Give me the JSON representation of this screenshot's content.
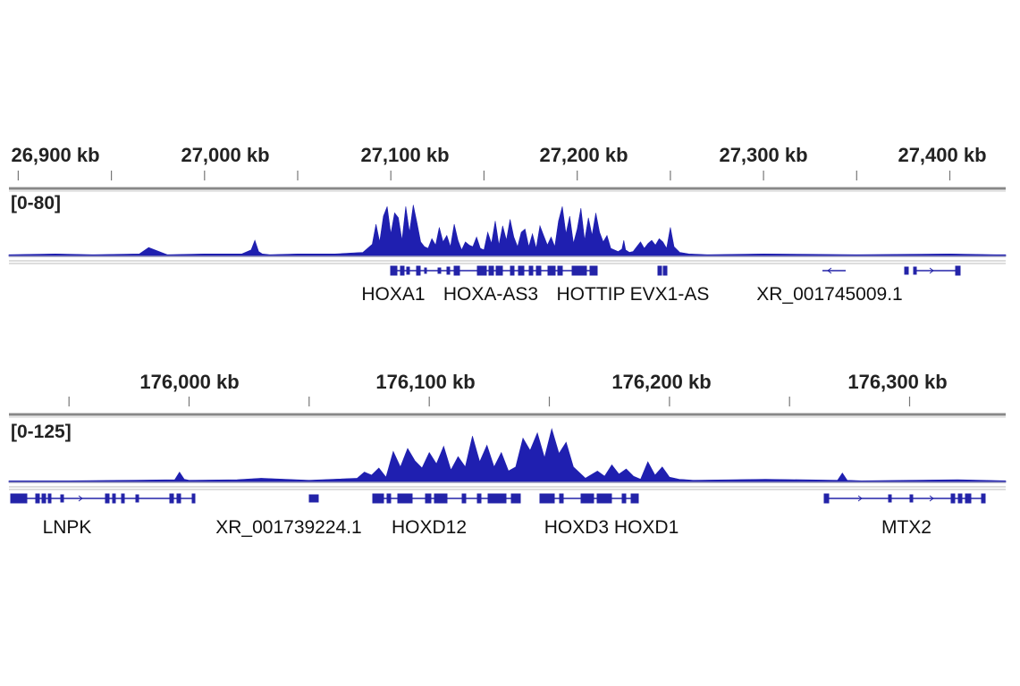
{
  "colors": {
    "signal": "#1f1fb0",
    "gene": "#2323a8",
    "axis": "#888888",
    "text": "#222222"
  },
  "chart_data": [
    {
      "type": "area",
      "range_label": "[0-80]",
      "ylim": [
        0,
        80
      ],
      "x_unit": "kb",
      "xlim": [
        26895,
        27430
      ],
      "ticks": [
        26900,
        27000,
        27100,
        27200,
        27300,
        27400
      ],
      "tick_labels": [
        "26,900 kb",
        "27,000 kb",
        "27,100 kb",
        "27,200 kb",
        "27,300 kb",
        "27,400 kb"
      ],
      "minor_ticks": [
        26950,
        27050,
        27150,
        27250,
        27350
      ],
      "x": [
        26895,
        26920,
        26940,
        26965,
        26970,
        26980,
        27000,
        27020,
        27025,
        27027,
        27029,
        27031,
        27035,
        27050,
        27070,
        27085,
        27090,
        27092,
        27094,
        27096,
        27098,
        27100,
        27102,
        27104,
        27106,
        27108,
        27110,
        27112,
        27114,
        27116,
        27118,
        27120,
        27122,
        27124,
        27126,
        27128,
        27130,
        27132,
        27134,
        27136,
        27138,
        27140,
        27142,
        27144,
        27146,
        27148,
        27150,
        27152,
        27154,
        27156,
        27158,
        27160,
        27162,
        27164,
        27166,
        27168,
        27170,
        27172,
        27174,
        27176,
        27178,
        27180,
        27182,
        27184,
        27186,
        27188,
        27190,
        27192,
        27194,
        27196,
        27198,
        27200,
        27202,
        27204,
        27206,
        27208,
        27210,
        27212,
        27214,
        27216,
        27218,
        27222,
        27224,
        27225,
        27226,
        27228,
        27230,
        27232,
        27234,
        27236,
        27238,
        27240,
        27242,
        27244,
        27246,
        27248,
        27250,
        27252,
        27255,
        27260,
        27270,
        27300,
        27350,
        27400,
        27425,
        27430
      ],
      "y": [
        2,
        3,
        2,
        3,
        11,
        2,
        3,
        3,
        8,
        20,
        6,
        3,
        2,
        3,
        3,
        5,
        15,
        40,
        18,
        50,
        62,
        28,
        54,
        48,
        20,
        62,
        30,
        64,
        42,
        18,
        12,
        10,
        22,
        14,
        36,
        18,
        26,
        12,
        40,
        20,
        8,
        18,
        14,
        12,
        24,
        10,
        8,
        30,
        16,
        44,
        14,
        38,
        20,
        46,
        24,
        12,
        30,
        34,
        12,
        28,
        10,
        38,
        26,
        14,
        24,
        12,
        44,
        62,
        28,
        50,
        16,
        34,
        60,
        20,
        48,
        26,
        54,
        30,
        18,
        26,
        10,
        6,
        9,
        20,
        8,
        5,
        6,
        12,
        18,
        10,
        16,
        20,
        14,
        22,
        18,
        10,
        36,
        12,
        5,
        3,
        2,
        3,
        2,
        3,
        2,
        2
      ],
      "genes": [
        {
          "name": "HOXA1",
          "pos": 27095
        },
        {
          "name": "HOXA-AS3",
          "pos": 27143
        },
        {
          "name": "HOTTIP",
          "pos": 27192
        },
        {
          "name": "EVX1-AS",
          "pos": 27238
        },
        {
          "name": "XR_001745009.1",
          "pos": 27320
        }
      ]
    },
    {
      "type": "area",
      "range_label": "[0-125]",
      "ylim": [
        0,
        125
      ],
      "x_unit": "kb",
      "xlim": [
        175925,
        176340
      ],
      "ticks": [
        176000,
        176100,
        176200,
        176300
      ],
      "tick_labels": [
        "176,000 kb",
        "176,100 kb",
        "176,200 kb",
        "176,300 kb"
      ],
      "minor_ticks": [
        175950,
        176050,
        176150,
        176250
      ],
      "x": [
        175925,
        175950,
        175975,
        175994,
        175996,
        175998,
        176000,
        176020,
        176030,
        176050,
        176070,
        176073,
        176076,
        176079,
        176082,
        176085,
        176088,
        176091,
        176094,
        176097,
        176100,
        176103,
        176106,
        176109,
        176112,
        176115,
        176118,
        176121,
        176124,
        176127,
        176130,
        176133,
        176136,
        176139,
        176142,
        176145,
        176148,
        176151,
        176154,
        176157,
        176160,
        176165,
        176170,
        176173,
        176176,
        176179,
        176182,
        176185,
        176188,
        176191,
        176194,
        176197,
        176200,
        176204,
        176210,
        176240,
        176270,
        176272,
        176274,
        176280,
        176300,
        176320,
        176340
      ],
      "y": [
        3,
        3,
        4,
        5,
        20,
        6,
        4,
        5,
        8,
        4,
        8,
        20,
        14,
        28,
        10,
        60,
        30,
        66,
        42,
        28,
        58,
        36,
        70,
        24,
        50,
        30,
        90,
        40,
        72,
        30,
        58,
        22,
        30,
        86,
        62,
        96,
        48,
        104,
        56,
        78,
        30,
        8,
        22,
        12,
        34,
        16,
        26,
        12,
        6,
        40,
        14,
        30,
        10,
        6,
        4,
        6,
        4,
        18,
        4,
        3,
        4,
        5,
        3
      ],
      "genes": [
        {
          "name": "LNPK",
          "pos": 175937
        },
        {
          "name": "XR_001739224.1",
          "pos": 176035
        },
        {
          "name": "HOXD12",
          "pos": 176102
        },
        {
          "name": "HOXD3 HOXD1",
          "pos": 176194
        },
        {
          "name": "MTX2",
          "pos": 176315
        }
      ]
    }
  ]
}
